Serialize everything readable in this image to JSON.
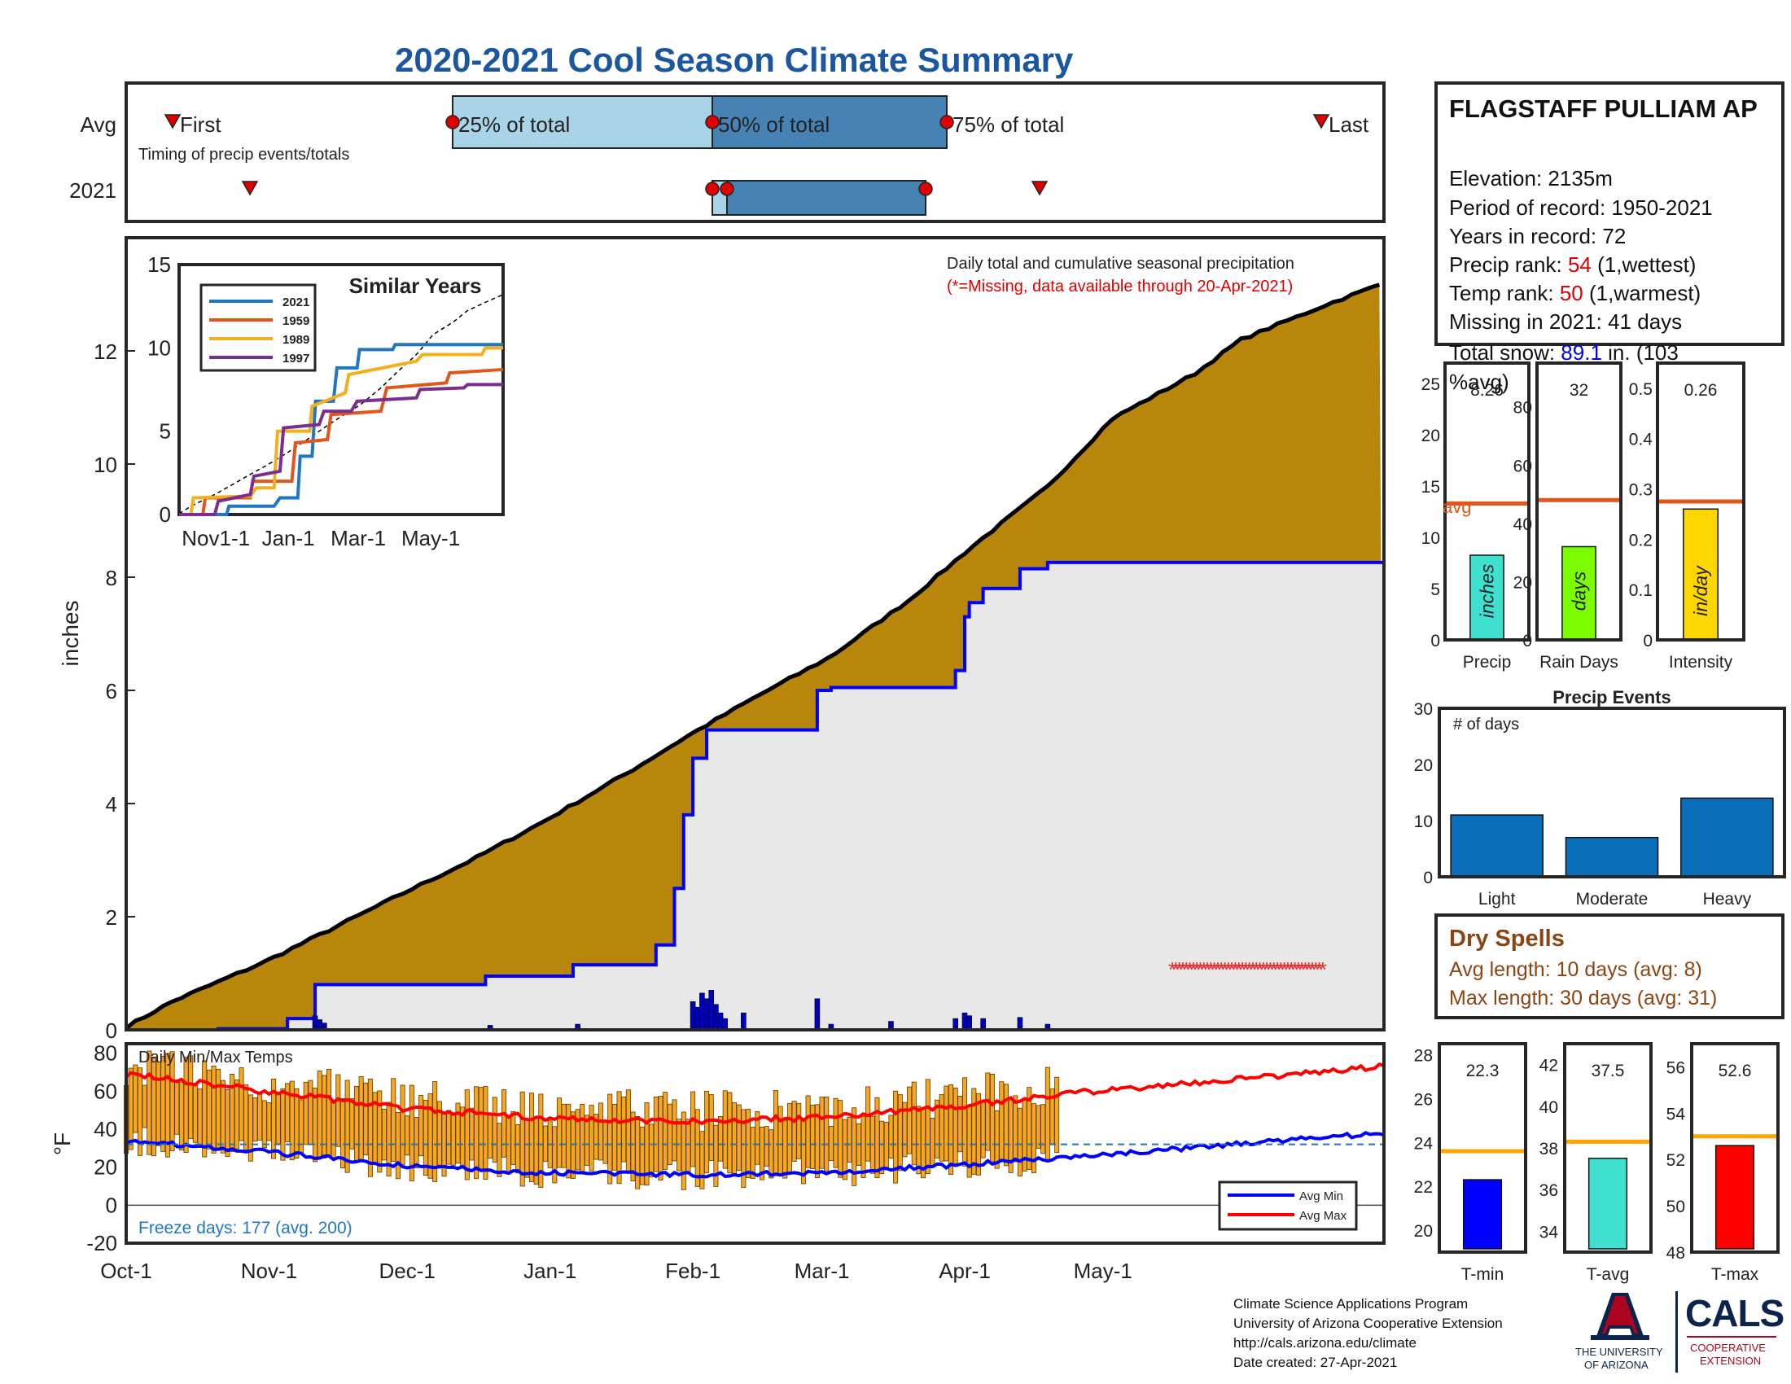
{
  "title": "2020-2021 Cool Season Climate Summary",
  "station": {
    "name": "FLAGSTAFF PULLIAM AP",
    "elevation": "Elevation: 2135m",
    "period": "Period of record: 1950-2021",
    "years": "Years in record: 72",
    "precip_rank_label": "Precip rank: ",
    "precip_rank_value": "54",
    "precip_rank_note": " (1,wettest)",
    "temp_rank_label": "Temp rank: ",
    "temp_rank_value": "50",
    "temp_rank_note": " (1,warmest)",
    "missing": "Missing in 2021: 41 days",
    "snow_label": "Total snow: ",
    "snow_value": "89.1",
    "snow_note": " in. (103 %avg)"
  },
  "timing": {
    "row_avg": "Avg",
    "row_2021": "2021",
    "first": "First",
    "last": "Last",
    "p25": "25% of total",
    "p50": "50% of total",
    "p75": "75% of total",
    "caption": "Timing of precip events/totals"
  },
  "main": {
    "ylabel": "inches",
    "note1": "Daily total and cumulative seasonal precipitation",
    "note2": "(*=Missing, data available through 20-Apr-2021)",
    "yticks": [
      "0",
      "2",
      "4",
      "6",
      "8",
      "10",
      "12"
    ],
    "xticks": [
      "Oct-1",
      "Nov-1",
      "Dec-1",
      "Jan-1",
      "Feb-1",
      "Mar-1",
      "Apr-1",
      "May-1"
    ]
  },
  "inset": {
    "title": "Similar Years",
    "yticks": [
      "0",
      "5",
      "10",
      "15"
    ],
    "xticks": [
      "Nov1-1",
      "Jan-1",
      "Mar-1",
      "May-1"
    ],
    "legend": [
      "2021",
      "1959",
      "1989",
      "1997"
    ]
  },
  "temps": {
    "title": "Daily Min/Max Temps",
    "ylabel": "°F",
    "yticks": [
      "-20",
      "0",
      "20",
      "40",
      "60",
      "80"
    ],
    "freeze": "Freeze days: 177 (avg. 200)",
    "legend_min": "Avg Min",
    "legend_max": "Avg Max"
  },
  "small_bars": {
    "avg_label": "avg",
    "precip": {
      "label": "Precip",
      "value_text": "8.26",
      "unit": "inches",
      "yticks": [
        "0",
        "5",
        "10",
        "15",
        "20",
        "25"
      ]
    },
    "raindays": {
      "label": "Rain Days",
      "value_text": "32",
      "unit": "days",
      "yticks": [
        "0",
        "20",
        "40",
        "60",
        "80"
      ]
    },
    "intensity": {
      "label": "Intensity",
      "value_text": "0.26",
      "unit": "in/day",
      "yticks": [
        "0",
        "0.1",
        "0.2",
        "0.3",
        "0.4",
        "0.5"
      ]
    }
  },
  "events": {
    "title": "Precip Events",
    "ylabel_note": "# of days",
    "yticks": [
      "0",
      "10",
      "20",
      "30"
    ],
    "categories": [
      "Light",
      "Moderate",
      "Heavy"
    ]
  },
  "dry": {
    "title": "Dry Spells",
    "avg_len": "Avg length: 10 days (avg: 8)",
    "max_len": "Max length: 30 days (avg: 31)"
  },
  "tbars": {
    "tmin": {
      "label": "T-min",
      "value_text": "22.3",
      "yticks": [
        "20",
        "22",
        "24",
        "26",
        "28"
      ]
    },
    "tavg": {
      "label": "T-avg",
      "value_text": "37.5",
      "yticks": [
        "34",
        "36",
        "38",
        "40",
        "42"
      ]
    },
    "tmax": {
      "label": "T-max",
      "value_text": "52.6",
      "yticks": [
        "48",
        "50",
        "52",
        "54",
        "56"
      ]
    }
  },
  "credits": {
    "line1": "Climate Science Applications Program",
    "line2": "University of Arizona Cooperative Extension",
    "line3": "http://cals.arizona.edu/climate",
    "line4": " Date created: 27-Apr-2021"
  },
  "logos": {
    "ua_line1": "THE UNIVERSITY",
    "ua_line2": "OF ARIZONA",
    "cals": "CALS",
    "cals_sub1": "COOPERATIVE",
    "cals_sub2": "EXTENSION"
  },
  "colors": {
    "accent_title": "#1a57a0",
    "cumulative_fill": "#b8860b",
    "avg_fill": "#e8e8e8",
    "blue_line": "#0000ff",
    "orange": "#f5a623",
    "avg_line": "#e0561b"
  },
  "chart_data": [
    {
      "type": "area",
      "title": "Daily total and cumulative seasonal precipitation",
      "ylabel": "inches",
      "ylim": [
        0,
        14
      ],
      "x_dates": [
        "Oct-1",
        "Nov-1",
        "Dec-1",
        "Jan-1",
        "Feb-1",
        "Mar-1",
        "Apr-1",
        "May-1"
      ],
      "series": [
        {
          "name": "average cumulative",
          "x_day": [
            0,
            10,
            20,
            30,
            45,
            61,
            75,
            91,
            110,
            122,
            137,
            153,
            170,
            183,
            200,
            214,
            232,
            242,
            260,
            273
          ],
          "y": [
            0.05,
            0.5,
            0.85,
            1.2,
            1.8,
            2.45,
            3.0,
            3.7,
            4.6,
            5.2,
            5.9,
            6.6,
            7.6,
            8.5,
            9.6,
            10.8,
            11.6,
            12.2,
            12.8,
            13.2
          ]
        },
        {
          "name": "2021 cumulative",
          "x_day": [
            0,
            20,
            30,
            35,
            41,
            76,
            78,
            97,
            113,
            115,
            119,
            121,
            123,
            126,
            134,
            150,
            153,
            166,
            180,
            182,
            183,
            186,
            194,
            200,
            273
          ],
          "y": [
            0,
            0.02,
            0.02,
            0.2,
            0.8,
            0.8,
            0.95,
            1.15,
            1.15,
            1.5,
            2.5,
            3.8,
            4.8,
            5.3,
            5.3,
            6.0,
            6.05,
            6.05,
            6.35,
            7.3,
            7.55,
            7.8,
            8.15,
            8.26,
            8.26
          ]
        }
      ]
    },
    {
      "type": "line",
      "title": "Daily Min/Max Temps",
      "ylabel": "°F",
      "ylim": [
        -20,
        85
      ],
      "series": [
        {
          "name": "Avg Min",
          "x_day": [
            0,
            30,
            60,
            90,
            120,
            150,
            180,
            210,
            240,
            273
          ],
          "y": [
            34,
            28,
            21,
            17,
            16,
            17,
            21,
            26,
            32,
            38
          ]
        },
        {
          "name": "Avg Max",
          "x_day": [
            0,
            30,
            60,
            90,
            120,
            150,
            180,
            210,
            240,
            273
          ],
          "y": [
            69,
            60,
            51,
            46,
            44,
            46,
            52,
            60,
            66,
            73
          ]
        }
      ]
    },
    {
      "type": "bar",
      "title": "Precip Events",
      "categories": [
        "Light",
        "Moderate",
        "Heavy"
      ],
      "values": [
        11,
        7,
        14
      ],
      "ylim": [
        0,
        30
      ]
    },
    {
      "type": "bar",
      "categories": [
        "Precip"
      ],
      "values": [
        8.26
      ],
      "avg": 13.3,
      "ylim": [
        0,
        27
      ]
    },
    {
      "type": "bar",
      "categories": [
        "Rain Days"
      ],
      "values": [
        32
      ],
      "avg": 48,
      "ylim": [
        0,
        95
      ]
    },
    {
      "type": "bar",
      "categories": [
        "Intensity"
      ],
      "values": [
        0.26
      ],
      "avg": 0.275,
      "ylim": [
        0,
        0.55
      ]
    },
    {
      "type": "bar",
      "categories": [
        "T-min"
      ],
      "values": [
        22.3
      ],
      "avg": 23.6,
      "ylim": [
        19,
        28.5
      ]
    },
    {
      "type": "bar",
      "categories": [
        "T-avg"
      ],
      "values": [
        37.5
      ],
      "avg": 38.3,
      "ylim": [
        33,
        43
      ]
    },
    {
      "type": "bar",
      "categories": [
        "T-max"
      ],
      "values": [
        52.6
      ],
      "avg": 53.0,
      "ylim": [
        48,
        57
      ]
    }
  ]
}
